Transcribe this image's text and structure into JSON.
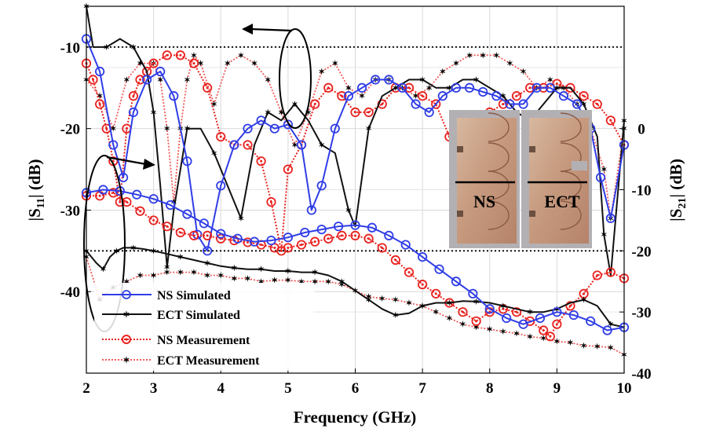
{
  "chart_data": {
    "type": "line",
    "xlabel": "Frequency (GHz)",
    "ylabel_left": {
      "main": "|S",
      "sub": "11",
      "tail": "| (dB)"
    },
    "ylabel_right": {
      "main": "|S",
      "sub": "21",
      "tail": "| (dB)"
    },
    "x_range": [
      2,
      10
    ],
    "x_ticks": [
      "2",
      "3",
      "4",
      "5",
      "6",
      "7",
      "8",
      "9",
      "10"
    ],
    "left_axis_range": [
      -50,
      -5
    ],
    "left_ticks": [
      "-10",
      "-20",
      "-30",
      "-40"
    ],
    "right_axis_range": [
      -40,
      20
    ],
    "right_ticks": [
      "0",
      "-10",
      "-20",
      "-30",
      "-40"
    ],
    "grid": true,
    "legend_position": "bottom-left",
    "colors": {
      "ns": "#2f3de6",
      "ect": "#111111",
      "meas": "#e8221f",
      "meas_light": "#f25a5a"
    },
    "reference_lines": [
      {
        "axis": "left",
        "value": -10
      },
      {
        "axis": "right",
        "value": -20
      }
    ],
    "series": [
      {
        "name": "NS Simulated",
        "axis": "left",
        "x": [
          2.0,
          2.2,
          2.4,
          2.55,
          2.7,
          2.9,
          3.1,
          3.3,
          3.5,
          3.65,
          3.8,
          4.0,
          4.2,
          4.4,
          4.6,
          4.8,
          5.0,
          5.2,
          5.35,
          5.5,
          5.7,
          5.9,
          6.1,
          6.3,
          6.5,
          6.7,
          6.9,
          7.1,
          7.3,
          7.5,
          7.7,
          7.9,
          8.1,
          8.3,
          8.5,
          8.7,
          8.9,
          9.1,
          9.3,
          9.5,
          9.65,
          9.8,
          10.0
        ],
        "y": [
          -9,
          -13,
          -22,
          -26,
          -18,
          -14,
          -13,
          -16,
          -24,
          -33,
          -35,
          -27,
          -22,
          -20,
          -19,
          -20,
          -19.5,
          -22,
          -30,
          -27,
          -20,
          -16,
          -15,
          -14,
          -14,
          -15,
          -17,
          -18,
          -16,
          -15,
          -15,
          -15.5,
          -16,
          -17,
          -17,
          -15,
          -15,
          -16,
          -17,
          -20,
          -26,
          -31,
          -22
        ]
      },
      {
        "name": "ECT Simulated",
        "axis": "left",
        "x": [
          2.0,
          2.1,
          2.3,
          2.5,
          2.7,
          2.9,
          3.0,
          3.1,
          3.2,
          3.3,
          3.5,
          3.7,
          3.9,
          4.1,
          4.3,
          4.5,
          4.7,
          4.9,
          5.1,
          5.3,
          5.5,
          5.7,
          5.9,
          6.0,
          6.2,
          6.4,
          6.6,
          6.8,
          7.0,
          7.2,
          7.4,
          7.6,
          7.8,
          8.0,
          8.2,
          8.4,
          8.6,
          8.8,
          9.0,
          9.2,
          9.4,
          9.6,
          9.7,
          9.8,
          10.0
        ],
        "y": [
          -5,
          -10,
          -10,
          -9,
          -10,
          -13,
          -18,
          -27,
          -37,
          -30,
          -20,
          -20,
          -23,
          -27,
          -31,
          -22,
          -18,
          -19,
          -17,
          -19,
          -22,
          -23,
          -30,
          -32,
          -20,
          -16,
          -15,
          -14,
          -14,
          -15,
          -15,
          -14,
          -14,
          -15,
          -16,
          -18,
          -19,
          -17,
          -15,
          -15,
          -17,
          -21,
          -33,
          -38,
          -19
        ]
      },
      {
        "name": "NS Measurement",
        "axis": "left",
        "x": [
          2.0,
          2.1,
          2.2,
          2.3,
          2.4,
          2.5,
          2.6,
          2.7,
          2.8,
          2.9,
          3.0,
          3.2,
          3.4,
          3.6,
          3.8,
          4.0,
          4.2,
          4.4,
          4.6,
          4.75,
          4.9,
          5.0,
          5.2,
          5.4,
          5.6,
          5.8,
          6.0,
          6.2,
          6.4,
          6.6,
          6.8,
          7.0,
          7.2,
          7.4,
          7.6,
          7.8,
          8.0,
          8.2,
          8.4,
          8.6,
          8.8,
          9.0,
          9.2,
          9.4,
          9.6,
          9.8,
          10.0
        ],
        "y": [
          -12,
          -14,
          -17,
          -20,
          -24,
          -29,
          -20,
          -16,
          -14,
          -13,
          -12,
          -11,
          -11,
          -12,
          -15,
          -21,
          -22,
          -22,
          -24,
          -29,
          -35,
          -25,
          -22,
          -17,
          -15,
          -16,
          -18,
          -18,
          -17,
          -15,
          -15,
          -16,
          -17,
          -21,
          -22,
          -20,
          -18,
          -17,
          -16,
          -15,
          -15,
          -14.5,
          -15,
          -16,
          -17,
          -19,
          -22
        ]
      },
      {
        "name": "ECT Measurement",
        "axis": "left",
        "x": [
          2.0,
          2.2,
          2.4,
          2.6,
          2.8,
          3.0,
          3.1,
          3.2,
          3.3,
          3.4,
          3.5,
          3.6,
          3.7,
          3.9,
          4.1,
          4.3,
          4.5,
          4.7,
          4.9,
          5.1,
          5.3,
          5.5,
          5.7,
          5.9,
          6.1,
          6.3,
          6.5,
          6.7,
          6.9,
          7.1,
          7.3,
          7.5,
          7.7,
          7.9,
          8.1,
          8.3,
          8.5,
          8.7,
          8.9,
          9.1,
          9.3,
          9.5,
          9.7,
          9.8,
          10.0
        ],
        "y": [
          -14,
          -16,
          -20,
          -14,
          -12,
          -12,
          -14,
          -20,
          -29,
          -20,
          -14,
          -11,
          -12,
          -17,
          -12,
          -11,
          -12,
          -14,
          -18,
          -22,
          -18,
          -13,
          -12,
          -15,
          -16,
          -14,
          -14,
          -15,
          -16,
          -15,
          -13,
          -12,
          -11,
          -11,
          -11,
          -12,
          -13,
          -15,
          -14,
          -15,
          -17,
          -20,
          -25,
          -31,
          -20
        ]
      },
      {
        "name": "NS Simulated",
        "axis": "right",
        "x": [
          2.0,
          2.25,
          2.5,
          2.75,
          3.0,
          3.25,
          3.5,
          3.75,
          4.0,
          4.25,
          4.5,
          4.75,
          5.0,
          5.25,
          5.5,
          5.75,
          6.0,
          6.25,
          6.5,
          6.75,
          7.0,
          7.25,
          7.5,
          7.75,
          8.0,
          8.25,
          8.5,
          8.75,
          9.0,
          9.25,
          9.5,
          9.75,
          10.0
        ],
        "y": [
          -10.5,
          -10,
          -10.2,
          -10.8,
          -11.5,
          -12.5,
          -14,
          -15.5,
          -17.2,
          -18,
          -18.5,
          -18.3,
          -17.8,
          -17,
          -16.5,
          -16,
          -15.8,
          -16.2,
          -17.5,
          -19,
          -21,
          -23,
          -25,
          -27,
          -29.5,
          -31,
          -32,
          -31,
          -30,
          -30.5,
          -31.5,
          -33,
          -32.5
        ]
      },
      {
        "name": "ECT Simulated",
        "axis": "right",
        "x": [
          2.0,
          2.15,
          2.25,
          2.35,
          2.45,
          2.55,
          2.7,
          2.85,
          3.0,
          3.2,
          3.4,
          3.6,
          3.8,
          4.0,
          4.2,
          4.4,
          4.6,
          4.8,
          5.0,
          5.2,
          5.4,
          5.6,
          5.8,
          6.0,
          6.2,
          6.4,
          6.6,
          6.8,
          7.0,
          7.2,
          7.4,
          7.6,
          7.8,
          8.0,
          8.2,
          8.4,
          8.6,
          8.8,
          9.0,
          9.2,
          9.4,
          9.6,
          9.8,
          10.0
        ],
        "y": [
          -20,
          -22,
          -23,
          -21,
          -20,
          -19.5,
          -19.5,
          -19.7,
          -20,
          -20.5,
          -21,
          -21.5,
          -22,
          -22.5,
          -22.8,
          -23,
          -23,
          -23.3,
          -23.3,
          -23.5,
          -23.5,
          -24,
          -25,
          -26.5,
          -28,
          -29.5,
          -30.5,
          -30.2,
          -29,
          -28.5,
          -28.5,
          -28.2,
          -28.3,
          -28.5,
          -29,
          -29.5,
          -30,
          -30,
          -29.5,
          -28.5,
          -28,
          -29,
          -32,
          -32.5
        ]
      },
      {
        "name": "NS Measurement",
        "axis": "right",
        "x": [
          2.0,
          2.2,
          2.4,
          2.6,
          2.8,
          3.0,
          3.2,
          3.4,
          3.6,
          3.8,
          4.0,
          4.2,
          4.4,
          4.6,
          4.8,
          5.0,
          5.2,
          5.4,
          5.6,
          5.8,
          6.0,
          6.2,
          6.4,
          6.6,
          6.8,
          7.0,
          7.2,
          7.4,
          7.6,
          7.8,
          8.0,
          8.2,
          8.4,
          8.6,
          8.8,
          8.9,
          9.0,
          9.2,
          9.4,
          9.6,
          9.8,
          10.0
        ],
        "y": [
          -11,
          -11,
          -10.5,
          -12,
          -13.5,
          -15,
          -16,
          -17,
          -17.5,
          -17.5,
          -18,
          -18.3,
          -18.6,
          -19,
          -19.5,
          -19.5,
          -19,
          -18.5,
          -18,
          -17.5,
          -17.5,
          -18,
          -19.5,
          -21.5,
          -23.5,
          -25.5,
          -27,
          -28.5,
          -30,
          -31.5,
          -30,
          -29.5,
          -30,
          -31.5,
          -33,
          -34,
          -32,
          -29,
          -27,
          -24,
          -23.5,
          -24.5
        ]
      },
      {
        "name": "ECT Measurement",
        "axis": "right",
        "x": [
          2.0,
          2.2,
          2.4,
          2.6,
          2.8,
          3.0,
          3.2,
          3.4,
          3.6,
          3.8,
          4.0,
          4.2,
          4.4,
          4.6,
          4.8,
          5.0,
          5.2,
          5.4,
          5.6,
          5.8,
          6.0,
          6.2,
          6.4,
          6.6,
          6.8,
          7.0,
          7.2,
          7.4,
          7.6,
          7.8,
          8.0,
          8.2,
          8.4,
          8.6,
          8.8,
          9.0,
          9.2,
          9.4,
          9.6,
          9.8,
          10.0
        ],
        "y": [
          -21,
          -28,
          -26,
          -25,
          -24,
          -24,
          -23.5,
          -23.5,
          -23.5,
          -24,
          -24,
          -24.5,
          -24.5,
          -25,
          -24.8,
          -24.8,
          -25,
          -25,
          -25,
          -25.5,
          -26.5,
          -27.5,
          -27.8,
          -28,
          -28.5,
          -29,
          -30,
          -31,
          -32,
          -32.5,
          -32.8,
          -33.2,
          -33.5,
          -34,
          -34.3,
          -34.8,
          -35,
          -35.5,
          -35.6,
          -35.8,
          -37
        ]
      }
    ],
    "legend": [
      {
        "label": "NS Simulated",
        "key": "ns_sim"
      },
      {
        "label": "ECT Simulated",
        "key": "ect_sim"
      },
      {
        "label": "NS Measurement",
        "key": "ns_meas"
      },
      {
        "label": "ECT Measurement",
        "key": "ect_meas"
      }
    ],
    "inset_photo": {
      "labels": [
        "NS",
        "ECT"
      ]
    }
  }
}
